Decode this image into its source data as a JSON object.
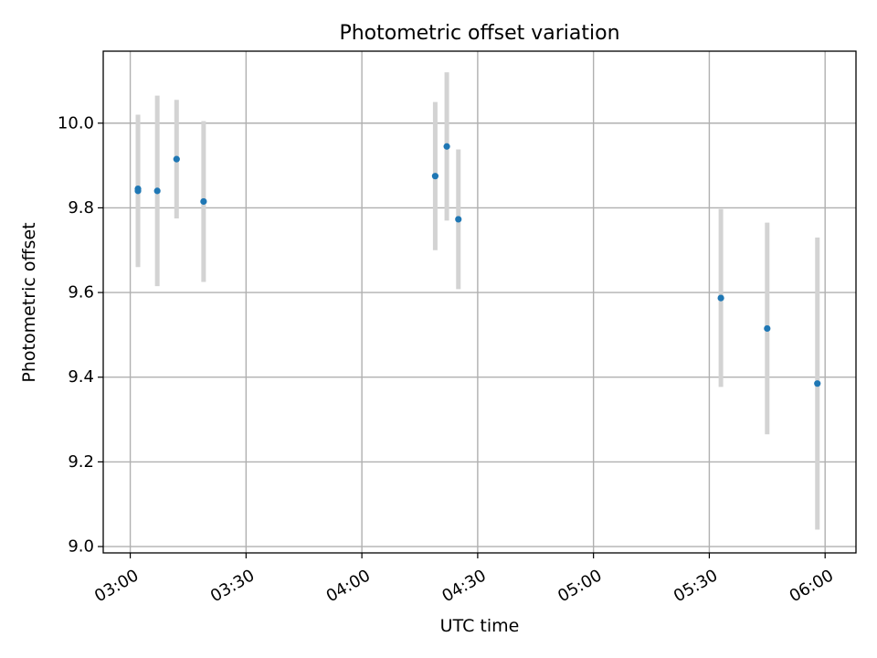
{
  "chart_data": {
    "type": "scatter",
    "title": "Photometric offset variation",
    "xlabel": "UTC time",
    "ylabel": "Photometric offset",
    "x_unit": "UTC HH:MM",
    "xlim": [
      "02:53",
      "06:08"
    ],
    "ylim": [
      8.985,
      10.17
    ],
    "grid": true,
    "x_ticks": [
      "03:00",
      "03:30",
      "04:00",
      "04:30",
      "05:00",
      "05:30",
      "06:00"
    ],
    "y_ticks": [
      "9.0",
      "9.2",
      "9.4",
      "9.6",
      "9.8",
      "10.0"
    ],
    "series": [
      {
        "marker_color": "#1f77b4",
        "errorbar_color": "#d3d3d3",
        "points": [
          {
            "x": "03:02",
            "y": 9.84,
            "err": 0.18
          },
          {
            "x": "03:02",
            "y": 9.845,
            "err": 0.175
          },
          {
            "x": "03:07",
            "y": 9.84,
            "err": 0.225
          },
          {
            "x": "03:12",
            "y": 9.915,
            "err": 0.14
          },
          {
            "x": "03:19",
            "y": 9.815,
            "err": 0.19
          },
          {
            "x": "04:19",
            "y": 9.875,
            "err": 0.175
          },
          {
            "x": "04:22",
            "y": 9.945,
            "err": 0.175
          },
          {
            "x": "04:25",
            "y": 9.773,
            "err": 0.165
          },
          {
            "x": "05:33",
            "y": 9.587,
            "err": 0.21
          },
          {
            "x": "05:45",
            "y": 9.515,
            "err": 0.25
          },
          {
            "x": "05:58",
            "y": 9.385,
            "err": 0.345
          }
        ]
      }
    ]
  }
}
